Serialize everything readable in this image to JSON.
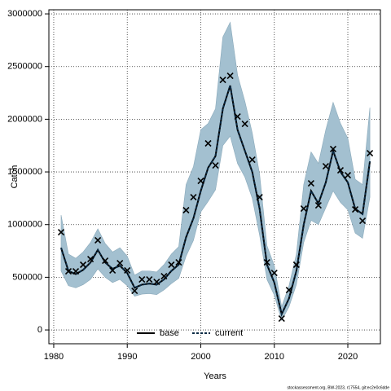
{
  "chart_data": {
    "type": "line",
    "xlabel": "Years",
    "ylabel": "Catch",
    "footer": "stockassessment.org, BW-2023, r17554, git:ec2e0c6dde",
    "x": [
      1981,
      1982,
      1983,
      1984,
      1985,
      1986,
      1987,
      1988,
      1989,
      1990,
      1991,
      1992,
      1993,
      1994,
      1995,
      1996,
      1997,
      1998,
      1999,
      2000,
      2001,
      2002,
      2003,
      2004,
      2005,
      2006,
      2007,
      2008,
      2009,
      2010,
      2011,
      2012,
      2013,
      2014,
      2015,
      2016,
      2017,
      2018,
      2019,
      2020,
      2021,
      2022,
      2023
    ],
    "xlim": [
      1979.34,
      2024.43
    ],
    "ylim": [
      -131000,
      3039000
    ],
    "xticks": [
      1980,
      1990,
      2000,
      2010,
      2020
    ],
    "yticks": [
      0,
      500000,
      1000000,
      1500000,
      2000000,
      2500000,
      3000000
    ],
    "grid": true,
    "legend": "bottom",
    "band": {
      "color": "#a3c0d0",
      "lower": [
        560000,
        420000,
        400000,
        430000,
        480000,
        580000,
        500000,
        450000,
        480000,
        420000,
        320000,
        340000,
        345000,
        335000,
        380000,
        440000,
        490000,
        700000,
        850000,
        1120000,
        1220000,
        1330000,
        1750000,
        1840000,
        1580000,
        1450000,
        1250000,
        900000,
        480000,
        330000,
        90000,
        220000,
        430000,
        830000,
        1040000,
        1000000,
        1160000,
        1320000,
        1210000,
        1140000,
        920000,
        870000,
        1260000
      ],
      "upper": [
        1090000,
        720000,
        680000,
        740000,
        830000,
        960000,
        820000,
        740000,
        780000,
        700000,
        520000,
        560000,
        560000,
        550000,
        620000,
        720000,
        790000,
        1380000,
        1550000,
        1900000,
        1960000,
        2100000,
        2780000,
        2920000,
        2420000,
        2170000,
        1870000,
        1480000,
        800000,
        610000,
        220000,
        420000,
        720000,
        1380000,
        1690000,
        1580000,
        1900000,
        2160000,
        1960000,
        1820000,
        1430000,
        1380000,
        2110000
      ]
    },
    "observed": {
      "color": "#000000",
      "values": [
        928000,
        557000,
        557000,
        619000,
        673000,
        851000,
        657000,
        565000,
        634000,
        565000,
        371000,
        479000,
        479000,
        456000,
        510000,
        619000,
        642000,
        1137000,
        1260000,
        1415000,
        1771000,
        1562000,
        2374000,
        2412000,
        2026000,
        1956000,
        1616000,
        1260000,
        642000,
        541000,
        108000,
        379000,
        619000,
        1152000,
        1392000,
        1183000,
        1554000,
        1717000,
        1515000,
        1469000,
        1144000,
        1036000,
        1678000
      ]
    },
    "series": [
      {
        "name": "base",
        "color": "#000000",
        "dashed": false,
        "values": [
          780000,
          560000,
          530000,
          570000,
          640000,
          760000,
          640000,
          580000,
          610000,
          540000,
          400000,
          430000,
          440000,
          430000,
          480000,
          560000,
          620000,
          880000,
          1060000,
          1320000,
          1540000,
          1650000,
          2100000,
          2320000,
          1900000,
          1700000,
          1500000,
          1150000,
          620000,
          450000,
          150000,
          300000,
          560000,
          1000000,
          1320000,
          1200000,
          1400000,
          1700000,
          1500000,
          1400000,
          1150000,
          1100000,
          1600000
        ]
      },
      {
        "name": "current",
        "color": "#0a2a44",
        "dashed": true,
        "values": [
          780000,
          560000,
          530000,
          570000,
          640000,
          760000,
          640000,
          580000,
          610000,
          540000,
          400000,
          430000,
          440000,
          430000,
          480000,
          560000,
          620000,
          880000,
          1060000,
          1320000,
          1540000,
          1650000,
          2100000,
          2320000,
          1900000,
          1700000,
          1500000,
          1150000,
          620000,
          450000,
          150000,
          300000,
          560000,
          1000000,
          1320000,
          1200000,
          1400000,
          1700000,
          1500000,
          1400000,
          1150000,
          1100000,
          1600000
        ]
      }
    ]
  }
}
